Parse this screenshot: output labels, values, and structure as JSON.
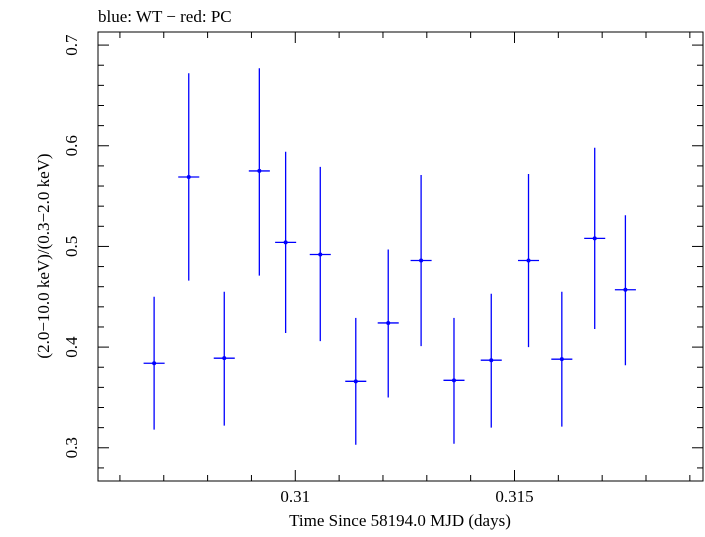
{
  "chart_data": {
    "type": "scatter",
    "title": "blue: WT − red: PC",
    "xlabel": "Time Since 58194.0 MJD (days)",
    "ylabel": "(2.0−10.0 keV)/(0.3−2.0 keV)",
    "xlim": [
      0.3055,
      0.3193
    ],
    "ylim": [
      0.267,
      0.713
    ],
    "x_ticks": [
      0.31,
      0.315
    ],
    "x_tick_labels": [
      "0.31",
      "0.315"
    ],
    "y_ticks": [
      0.3,
      0.4,
      0.5,
      0.6,
      0.7
    ],
    "y_tick_labels": [
      "0.3",
      "0.4",
      "0.5",
      "0.6",
      "0.7"
    ],
    "grid": false,
    "series": [
      {
        "color": "#0000ff",
        "points": [
          {
            "x": 0.30678,
            "y": 0.384,
            "xerr": 0.00024,
            "ylo": 0.318,
            "yhi": 0.45
          },
          {
            "x": 0.30757,
            "y": 0.569,
            "xerr": 0.00024,
            "ylo": 0.466,
            "yhi": 0.672
          },
          {
            "x": 0.30838,
            "y": 0.389,
            "xerr": 0.00024,
            "ylo": 0.322,
            "yhi": 0.455
          },
          {
            "x": 0.30918,
            "y": 0.575,
            "xerr": 0.00024,
            "ylo": 0.471,
            "yhi": 0.677
          },
          {
            "x": 0.30978,
            "y": 0.504,
            "xerr": 0.00024,
            "ylo": 0.414,
            "yhi": 0.594
          },
          {
            "x": 0.31057,
            "y": 0.492,
            "xerr": 0.00024,
            "ylo": 0.406,
            "yhi": 0.579
          },
          {
            "x": 0.31138,
            "y": 0.366,
            "xerr": 0.00024,
            "ylo": 0.303,
            "yhi": 0.429
          },
          {
            "x": 0.31212,
            "y": 0.424,
            "xerr": 0.00024,
            "ylo": 0.35,
            "yhi": 0.497
          },
          {
            "x": 0.31287,
            "y": 0.486,
            "xerr": 0.00024,
            "ylo": 0.401,
            "yhi": 0.571
          },
          {
            "x": 0.31362,
            "y": 0.367,
            "xerr": 0.00024,
            "ylo": 0.304,
            "yhi": 0.429
          },
          {
            "x": 0.31447,
            "y": 0.387,
            "xerr": 0.00024,
            "ylo": 0.32,
            "yhi": 0.453
          },
          {
            "x": 0.31532,
            "y": 0.486,
            "xerr": 0.00024,
            "ylo": 0.4,
            "yhi": 0.572
          },
          {
            "x": 0.31608,
            "y": 0.388,
            "xerr": 0.00024,
            "ylo": 0.321,
            "yhi": 0.455
          },
          {
            "x": 0.31683,
            "y": 0.508,
            "xerr": 0.00024,
            "ylo": 0.418,
            "yhi": 0.598
          },
          {
            "x": 0.31753,
            "y": 0.457,
            "xerr": 0.00024,
            "ylo": 0.382,
            "yhi": 0.531
          }
        ]
      }
    ]
  }
}
